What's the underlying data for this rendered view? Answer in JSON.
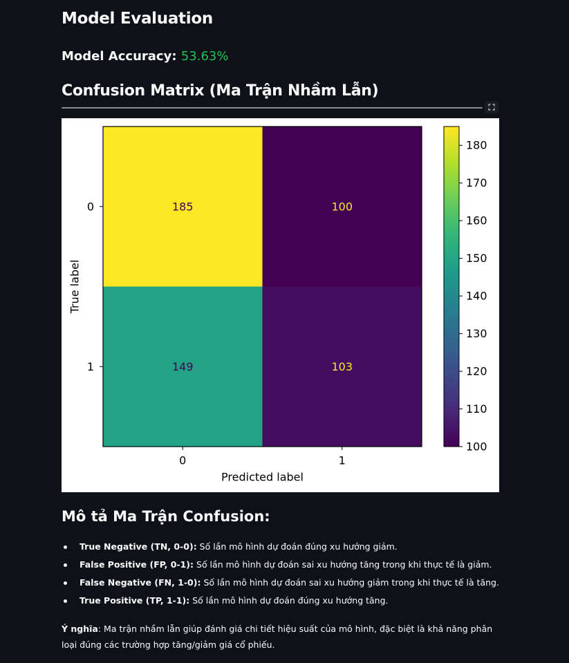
{
  "header": {
    "title": "Model Evaluation",
    "accuracy_label": "Model Accuracy:",
    "accuracy_value": "53.63%",
    "cm_heading": "Confusion Matrix (Ma Trận Nhầm Lẫn)"
  },
  "colors": {
    "background": "#0e1117",
    "accent_green": "#21c354",
    "viridis": [
      "#440154",
      "#482878",
      "#3e4989",
      "#31688e",
      "#26828e",
      "#1f9e89",
      "#35b779",
      "#6ece58",
      "#b5de2b",
      "#fde725"
    ]
  },
  "chart_data": {
    "type": "heatmap",
    "x_categories": [
      "0",
      "1"
    ],
    "y_categories": [
      "0",
      "1"
    ],
    "values": [
      [
        185,
        100
      ],
      [
        149,
        103
      ]
    ],
    "xlabel": "Predicted label",
    "ylabel": "True label",
    "colormap": "viridis",
    "colorbar_range": [
      100,
      185
    ],
    "colorbar_ticks": [
      100,
      110,
      120,
      130,
      140,
      150,
      160,
      170,
      180
    ]
  },
  "description": {
    "heading": "Mô tả Ma Trận Confusion:",
    "items": [
      {
        "term": "True Negative (TN, 0-0):",
        "text": " Số lần mô hình dự đoán đúng xu hướng giảm."
      },
      {
        "term": "False Positive (FP, 0-1):",
        "text": " Số lần mô hình dự đoán sai xu hướng tăng trong khi thực tế là giảm."
      },
      {
        "term": "False Negative (FN, 1-0):",
        "text": " Số lần mô hình dự đoán sai xu hướng giảm trong khi thực tế là tăng."
      },
      {
        "term": "True Positive (TP, 1-1):",
        "text": " Số lần mô hình dự đoán đúng xu hướng tăng."
      }
    ],
    "meaning_label": "Ý nghĩa",
    "meaning_text": ": Ma trận nhầm lẫn giúp đánh giá chi tiết hiệu suất của mô hình, đặc biệt là khả năng phân loại đúng các trường hợp tăng/giảm giá cổ phiếu."
  },
  "icons": {
    "fullscreen": "fullscreen-icon"
  }
}
